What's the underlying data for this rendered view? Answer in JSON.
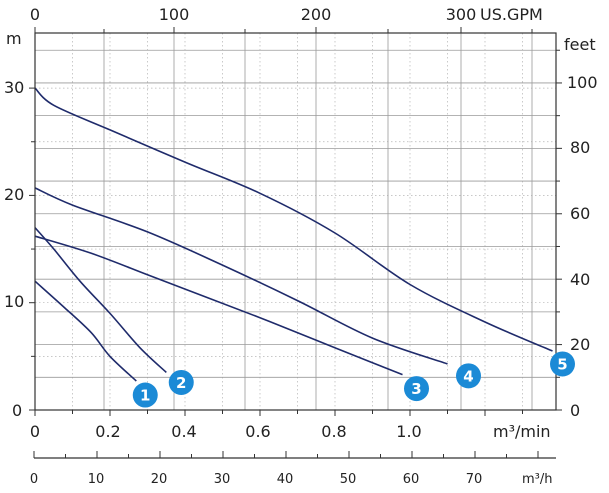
{
  "chart_data": {
    "type": "line",
    "title": "",
    "x_axis_bottom": {
      "label": "m³/min",
      "ticks": [
        "0",
        "0.2",
        "0.4",
        "0.6",
        "0.8",
        "1.0"
      ],
      "range": [
        0,
        1.4
      ]
    },
    "x_axis_top": {
      "label": "US.GPM",
      "ticks": [
        "0",
        "100",
        "200",
        "300"
      ]
    },
    "x_axis_secondary": {
      "label": "m³/h",
      "ticks": [
        "0",
        "10",
        "20",
        "30",
        "40",
        "50",
        "60",
        "70"
      ]
    },
    "y_axis_left": {
      "label": "m",
      "ticks": [
        "0",
        "10",
        "20",
        "30"
      ],
      "range": [
        0,
        33
      ]
    },
    "y_axis_right": {
      "label": "feet",
      "ticks": [
        "0",
        "20",
        "40",
        "60",
        "80",
        "100"
      ]
    },
    "grid": true,
    "series": [
      {
        "name": "1",
        "x": [
          0,
          0.08,
          0.15,
          0.2,
          0.27
        ],
        "y": [
          12,
          9.5,
          7.2,
          5,
          2.7
        ]
      },
      {
        "name": "2",
        "x": [
          0,
          0.05,
          0.12,
          0.2,
          0.28,
          0.35
        ],
        "y": [
          17,
          15,
          12,
          9,
          5.8,
          3.5
        ]
      },
      {
        "name": "3",
        "x": [
          0,
          0.15,
          0.3,
          0.45,
          0.6,
          0.75,
          0.9,
          0.98
        ],
        "y": [
          16.2,
          14.6,
          12.6,
          10.6,
          8.6,
          6.5,
          4.4,
          3.3
        ]
      },
      {
        "name": "4",
        "x": [
          0,
          0.1,
          0.3,
          0.5,
          0.7,
          0.9,
          1.1
        ],
        "y": [
          20.7,
          19.1,
          16.6,
          13.5,
          10.2,
          6.7,
          4.3
        ]
      },
      {
        "name": "5",
        "x": [
          0,
          0.05,
          0.2,
          0.4,
          0.6,
          0.8,
          1.0,
          1.2,
          1.38
        ],
        "y": [
          30,
          28.4,
          26.1,
          23.1,
          20.2,
          16.5,
          11.7,
          8.2,
          5.5
        ]
      }
    ],
    "badge_color": "#1b8ad6",
    "line_color": "#1f2b6b"
  }
}
